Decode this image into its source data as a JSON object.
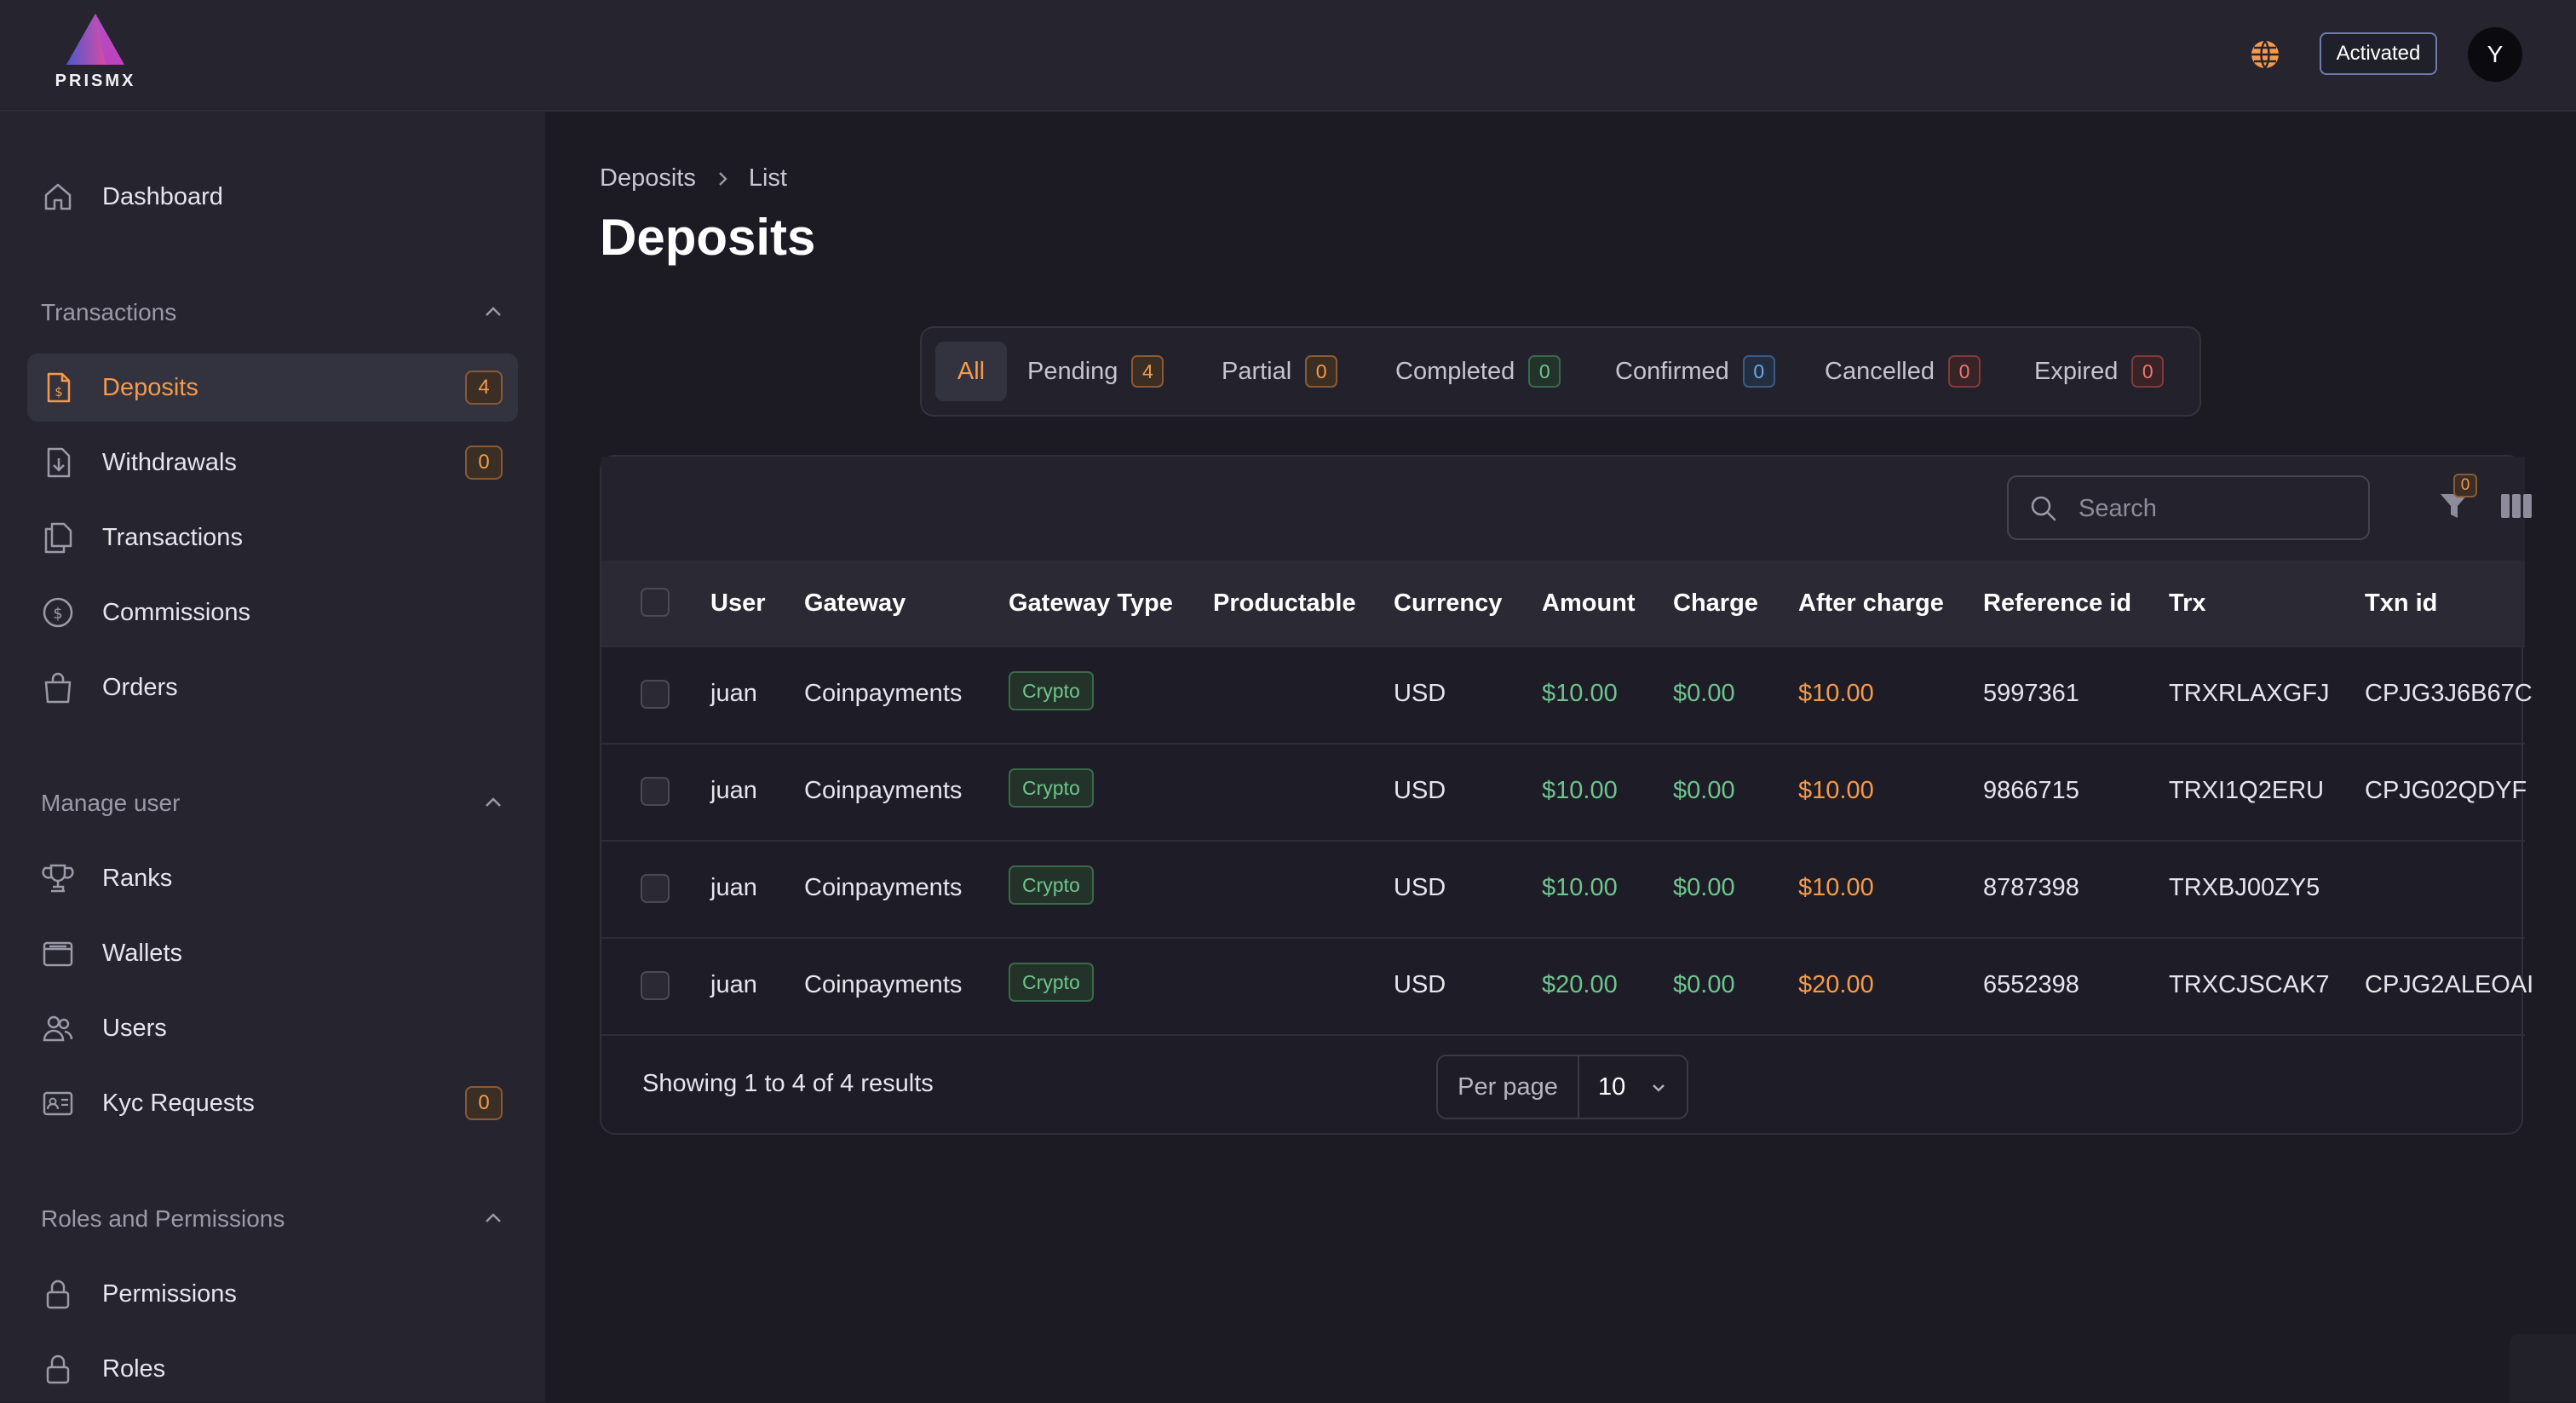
{
  "brand": {
    "name": "PRISMX"
  },
  "header": {
    "status_label": "Activated",
    "avatar_initial": "Y"
  },
  "sidebar": {
    "dashboard": "Dashboard",
    "sections": [
      {
        "title": "Transactions"
      },
      {
        "title": "Manage user"
      },
      {
        "title": "Roles and Permissions"
      }
    ],
    "items": [
      {
        "label": "Deposits",
        "badge": "4"
      },
      {
        "label": "Withdrawals",
        "badge": "0"
      },
      {
        "label": "Transactions"
      },
      {
        "label": "Commissions"
      },
      {
        "label": "Orders"
      },
      {
        "label": "Ranks"
      },
      {
        "label": "Wallets"
      },
      {
        "label": "Users"
      },
      {
        "label": "Kyc Requests",
        "badge": "0"
      },
      {
        "label": "Permissions"
      },
      {
        "label": "Roles"
      }
    ]
  },
  "breadcrumb": {
    "first": "Deposits",
    "second": "List"
  },
  "page": {
    "title": "Deposits"
  },
  "tabs": [
    {
      "label": "All"
    },
    {
      "label": "Pending",
      "count": "4"
    },
    {
      "label": "Partial",
      "count": "0"
    },
    {
      "label": "Completed",
      "count": "0"
    },
    {
      "label": "Confirmed",
      "count": "0"
    },
    {
      "label": "Cancelled",
      "count": "0"
    },
    {
      "label": "Expired",
      "count": "0"
    }
  ],
  "toolbar": {
    "search_placeholder": "Search",
    "filter_count": "0"
  },
  "table": {
    "columns": [
      "User",
      "Gateway",
      "Gateway Type",
      "Productable",
      "Currency",
      "Amount",
      "Charge",
      "After charge",
      "Reference id",
      "Trx",
      "Txn id"
    ],
    "rows": [
      {
        "user": "juan",
        "gateway": "Coinpayments",
        "gateway_type": "Crypto",
        "productable": "",
        "currency": "USD",
        "amount": "$10.00",
        "charge": "$0.00",
        "after_charge": "$10.00",
        "reference_id": "5997361",
        "trx": "TRXRLAXGFJ",
        "txn_id": "CPJG3J6B67C"
      },
      {
        "user": "juan",
        "gateway": "Coinpayments",
        "gateway_type": "Crypto",
        "productable": "",
        "currency": "USD",
        "amount": "$10.00",
        "charge": "$0.00",
        "after_charge": "$10.00",
        "reference_id": "9866715",
        "trx": "TRXI1Q2ERU",
        "txn_id": "CPJG02QDYF"
      },
      {
        "user": "juan",
        "gateway": "Coinpayments",
        "gateway_type": "Crypto",
        "productable": "",
        "currency": "USD",
        "amount": "$10.00",
        "charge": "$0.00",
        "after_charge": "$10.00",
        "reference_id": "8787398",
        "trx": "TRXBJ00ZY5",
        "txn_id": ""
      },
      {
        "user": "juan",
        "gateway": "Coinpayments",
        "gateway_type": "Crypto",
        "productable": "",
        "currency": "USD",
        "amount": "$20.00",
        "charge": "$0.00",
        "after_charge": "$20.00",
        "reference_id": "6552398",
        "trx": "TRXCJSCAK7",
        "txn_id": "CPJG2ALEOAI"
      }
    ]
  },
  "pagination": {
    "summary": "Showing 1 to 4 of 4 results",
    "per_page_label": "Per page",
    "per_page_value": "10"
  },
  "colors": {
    "accent": "#f59a4a",
    "success": "#6ec58d",
    "info": "#6fa8e6",
    "danger": "#ee7676",
    "background": "#1c1b24",
    "sidebar": "#25242f"
  }
}
